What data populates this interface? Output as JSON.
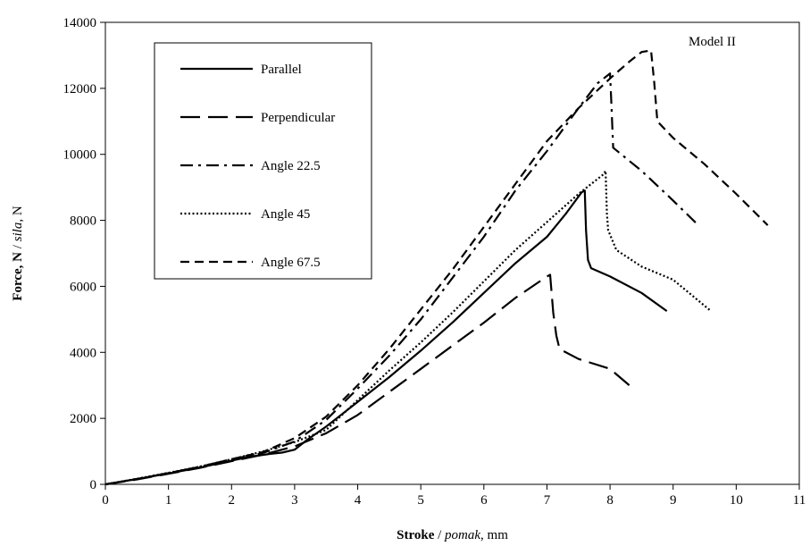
{
  "chart_data": {
    "type": "line",
    "annotation": "Model II",
    "xlabel_bold": "Stroke",
    "xlabel_italic": "pomak",
    "xlabel_unit": ", mm",
    "ylabel_bold": "Force, N",
    "ylabel_italic": "sila",
    "ylabel_unit": ", N",
    "xlim": [
      0,
      11
    ],
    "ylim": [
      0,
      14000
    ],
    "xticks": [
      0,
      1,
      2,
      3,
      4,
      5,
      6,
      7,
      8,
      9,
      10,
      11
    ],
    "yticks": [
      0,
      2000,
      4000,
      6000,
      8000,
      10000,
      12000,
      14000
    ],
    "grid": false,
    "legend_position": "top-left",
    "series": [
      {
        "name": "Parallel",
        "line_style": "solid",
        "color": "#000000",
        "points": [
          [
            0,
            0
          ],
          [
            0.5,
            160
          ],
          [
            1,
            330
          ],
          [
            1.5,
            510
          ],
          [
            2,
            720
          ],
          [
            2.3,
            840
          ],
          [
            2.6,
            920
          ],
          [
            2.8,
            960
          ],
          [
            3,
            1050
          ],
          [
            3.2,
            1350
          ],
          [
            3.5,
            1750
          ],
          [
            4,
            2500
          ],
          [
            4.5,
            3250
          ],
          [
            5,
            4050
          ],
          [
            5.5,
            4900
          ],
          [
            6,
            5800
          ],
          [
            6.5,
            6700
          ],
          [
            7,
            7500
          ],
          [
            7.3,
            8200
          ],
          [
            7.55,
            8850
          ],
          [
            7.6,
            8900
          ],
          [
            7.62,
            7700
          ],
          [
            7.65,
            6800
          ],
          [
            7.7,
            6550
          ],
          [
            8,
            6300
          ],
          [
            8.5,
            5800
          ],
          [
            8.9,
            5250
          ]
        ]
      },
      {
        "name": "Perpendicular",
        "line_style": "long-dash",
        "color": "#000000",
        "points": [
          [
            0,
            0
          ],
          [
            0.5,
            150
          ],
          [
            1,
            320
          ],
          [
            1.5,
            500
          ],
          [
            2,
            700
          ],
          [
            2.5,
            900
          ],
          [
            3,
            1150
          ],
          [
            3.5,
            1550
          ],
          [
            4,
            2100
          ],
          [
            4.5,
            2800
          ],
          [
            5,
            3500
          ],
          [
            5.5,
            4200
          ],
          [
            6,
            4900
          ],
          [
            6.5,
            5650
          ],
          [
            7,
            6300
          ],
          [
            7.05,
            6350
          ],
          [
            7.1,
            5200
          ],
          [
            7.15,
            4500
          ],
          [
            7.2,
            4100
          ],
          [
            7.5,
            3800
          ],
          [
            8,
            3500
          ],
          [
            8.4,
            2850
          ]
        ]
      },
      {
        "name": "Angle 22.5",
        "line_style": "dash-dot",
        "color": "#000000",
        "points": [
          [
            0,
            0
          ],
          [
            0.5,
            160
          ],
          [
            1,
            340
          ],
          [
            1.5,
            530
          ],
          [
            2,
            760
          ],
          [
            2.5,
            950
          ],
          [
            3,
            1300
          ],
          [
            3.5,
            1950
          ],
          [
            4,
            2900
          ],
          [
            4.5,
            3900
          ],
          [
            5,
            5000
          ],
          [
            5.5,
            6250
          ],
          [
            6,
            7500
          ],
          [
            6.5,
            8900
          ],
          [
            7,
            10100
          ],
          [
            7.5,
            11400
          ],
          [
            7.8,
            12150
          ],
          [
            8,
            12450
          ],
          [
            8.02,
            11600
          ],
          [
            8.05,
            10200
          ],
          [
            8.5,
            9500
          ],
          [
            9,
            8600
          ],
          [
            9.4,
            7850
          ]
        ]
      },
      {
        "name": "Angle 45",
        "line_style": "dotted",
        "color": "#000000",
        "points": [
          [
            0,
            0
          ],
          [
            0.5,
            170
          ],
          [
            1,
            350
          ],
          [
            1.5,
            540
          ],
          [
            2,
            760
          ],
          [
            2.5,
            1000
          ],
          [
            3,
            1280
          ],
          [
            3.5,
            1650
          ],
          [
            4,
            2550
          ],
          [
            4.5,
            3450
          ],
          [
            5,
            4300
          ],
          [
            5.5,
            5200
          ],
          [
            6,
            6150
          ],
          [
            6.5,
            7100
          ],
          [
            7,
            7950
          ],
          [
            7.5,
            8800
          ],
          [
            7.9,
            9400
          ],
          [
            7.93,
            9500
          ],
          [
            7.95,
            8200
          ],
          [
            7.97,
            7700
          ],
          [
            8.1,
            7100
          ],
          [
            8.5,
            6600
          ],
          [
            9,
            6200
          ],
          [
            9.6,
            5250
          ]
        ]
      },
      {
        "name": "Angle 67.5",
        "line_style": "dashed",
        "color": "#000000",
        "points": [
          [
            0,
            0
          ],
          [
            0.5,
            160
          ],
          [
            1,
            340
          ],
          [
            1.5,
            530
          ],
          [
            2,
            760
          ],
          [
            2.5,
            980
          ],
          [
            3,
            1400
          ],
          [
            3.5,
            2050
          ],
          [
            4,
            3000
          ],
          [
            4.5,
            4100
          ],
          [
            5,
            5300
          ],
          [
            5.5,
            6500
          ],
          [
            6,
            7800
          ],
          [
            6.5,
            9100
          ],
          [
            7,
            10400
          ],
          [
            7.5,
            11400
          ],
          [
            8,
            12300
          ],
          [
            8.3,
            12800
          ],
          [
            8.5,
            13100
          ],
          [
            8.65,
            13150
          ],
          [
            8.7,
            12200
          ],
          [
            8.75,
            11000
          ],
          [
            9,
            10500
          ],
          [
            9.5,
            9700
          ],
          [
            10,
            8800
          ],
          [
            10.5,
            7850
          ]
        ]
      }
    ]
  }
}
